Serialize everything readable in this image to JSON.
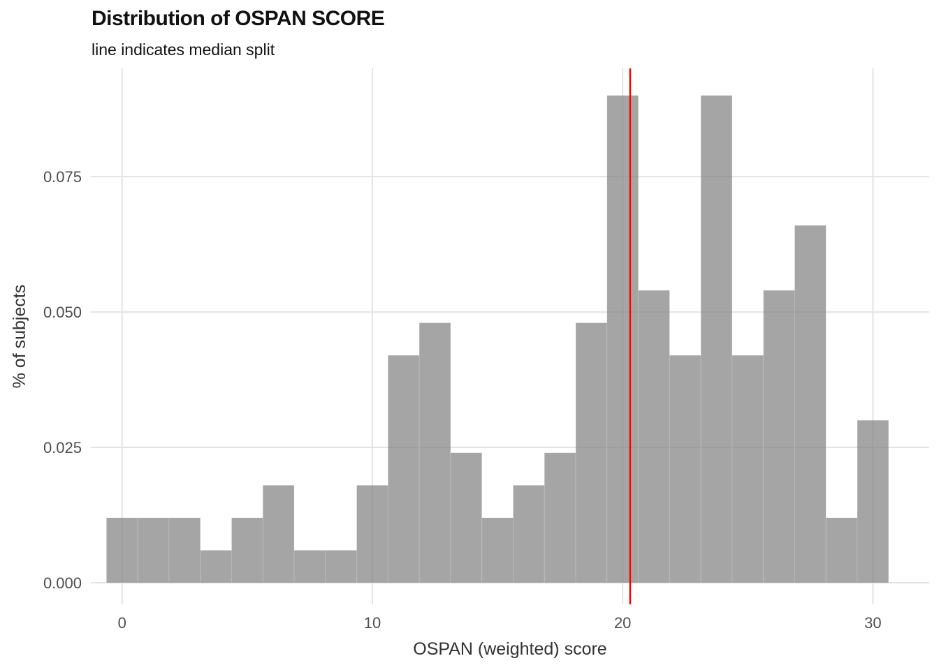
{
  "chart_data": {
    "type": "bar",
    "title": "Distribution of OSPAN SCORE",
    "subtitle": "line indicates median split",
    "xlabel": "OSPAN (weighted) score",
    "ylabel": "% of subjects",
    "xlim": [
      -1.25,
      32.25
    ],
    "ylim": [
      -0.004,
      0.095
    ],
    "x_ticks": [
      0,
      10,
      20,
      30
    ],
    "x_tick_labels": [
      "0",
      "10",
      "20",
      "30"
    ],
    "y_ticks": [
      0,
      0.025,
      0.05,
      0.075
    ],
    "y_tick_labels": [
      "0.000",
      "0.025",
      "0.050",
      "0.075"
    ],
    "grid": true,
    "bin_width": 1.25,
    "bins": [
      {
        "x0": -0.625,
        "x1": 0.625,
        "value": 0.012
      },
      {
        "x0": 0.625,
        "x1": 1.875,
        "value": 0.012
      },
      {
        "x0": 1.875,
        "x1": 3.125,
        "value": 0.012
      },
      {
        "x0": 3.125,
        "x1": 4.375,
        "value": 0.006
      },
      {
        "x0": 4.375,
        "x1": 5.625,
        "value": 0.012
      },
      {
        "x0": 5.625,
        "x1": 6.875,
        "value": 0.018
      },
      {
        "x0": 6.875,
        "x1": 8.125,
        "value": 0.006
      },
      {
        "x0": 8.125,
        "x1": 9.375,
        "value": 0.006
      },
      {
        "x0": 9.375,
        "x1": 10.625,
        "value": 0.018
      },
      {
        "x0": 10.625,
        "x1": 11.875,
        "value": 0.042
      },
      {
        "x0": 11.875,
        "x1": 13.125,
        "value": 0.048
      },
      {
        "x0": 13.125,
        "x1": 14.375,
        "value": 0.024
      },
      {
        "x0": 14.375,
        "x1": 15.625,
        "value": 0.012
      },
      {
        "x0": 15.625,
        "x1": 16.875,
        "value": 0.018
      },
      {
        "x0": 16.875,
        "x1": 18.125,
        "value": 0.024
      },
      {
        "x0": 18.125,
        "x1": 19.375,
        "value": 0.048
      },
      {
        "x0": 19.375,
        "x1": 20.625,
        "value": 0.09
      },
      {
        "x0": 20.625,
        "x1": 21.875,
        "value": 0.054
      },
      {
        "x0": 21.875,
        "x1": 23.125,
        "value": 0.042
      },
      {
        "x0": 23.125,
        "x1": 24.375,
        "value": 0.09
      },
      {
        "x0": 24.375,
        "x1": 25.625,
        "value": 0.042
      },
      {
        "x0": 25.625,
        "x1": 26.875,
        "value": 0.054
      },
      {
        "x0": 26.875,
        "x1": 28.125,
        "value": 0.066
      },
      {
        "x0": 28.125,
        "x1": 29.375,
        "value": 0.012
      },
      {
        "x0": 29.375,
        "x1": 30.625,
        "value": 0.03
      }
    ],
    "bar_color": "#7f7f7f",
    "median_line": {
      "x": 20.3,
      "color": "#ff0000"
    }
  }
}
